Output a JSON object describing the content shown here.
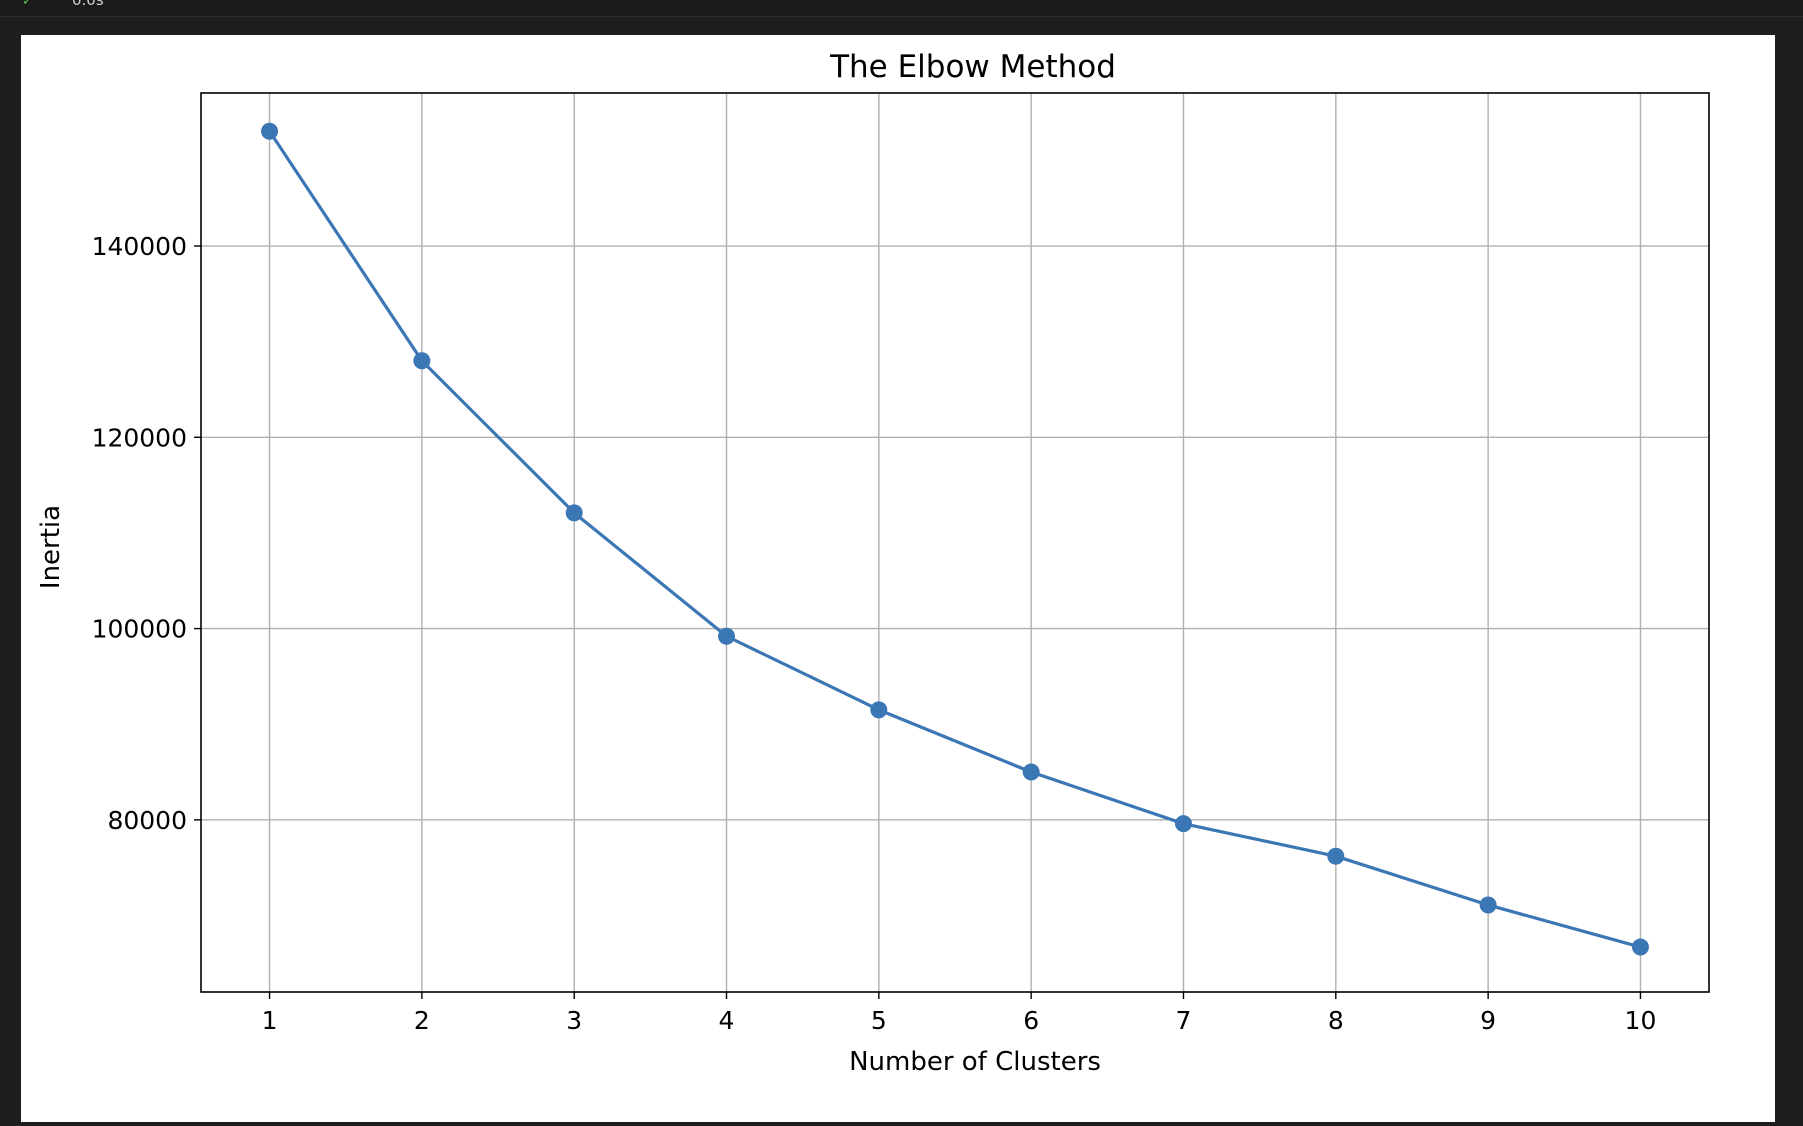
{
  "run": {
    "time": "0.0s"
  },
  "chart_data": {
    "type": "line",
    "title": "The Elbow Method",
    "xlabel": "Number of Clusters",
    "ylabel": "Inertia",
    "x": [
      1,
      2,
      3,
      4,
      5,
      6,
      7,
      8,
      9,
      10
    ],
    "series": [
      {
        "values": [
          152000,
          128000,
          112100,
          99200,
          91500,
          85000,
          79600,
          76200,
          71100,
          66700
        ],
        "marker": "circle"
      }
    ],
    "xticks": [
      1,
      2,
      3,
      4,
      5,
      6,
      7,
      8,
      9,
      10
    ],
    "yticks": [
      80000,
      100000,
      120000,
      140000
    ],
    "xlim": [
      0.55,
      10.45
    ],
    "ylim": [
      62000,
      156000
    ],
    "grid": true,
    "colors": {
      "line": "#3b76b5"
    }
  }
}
